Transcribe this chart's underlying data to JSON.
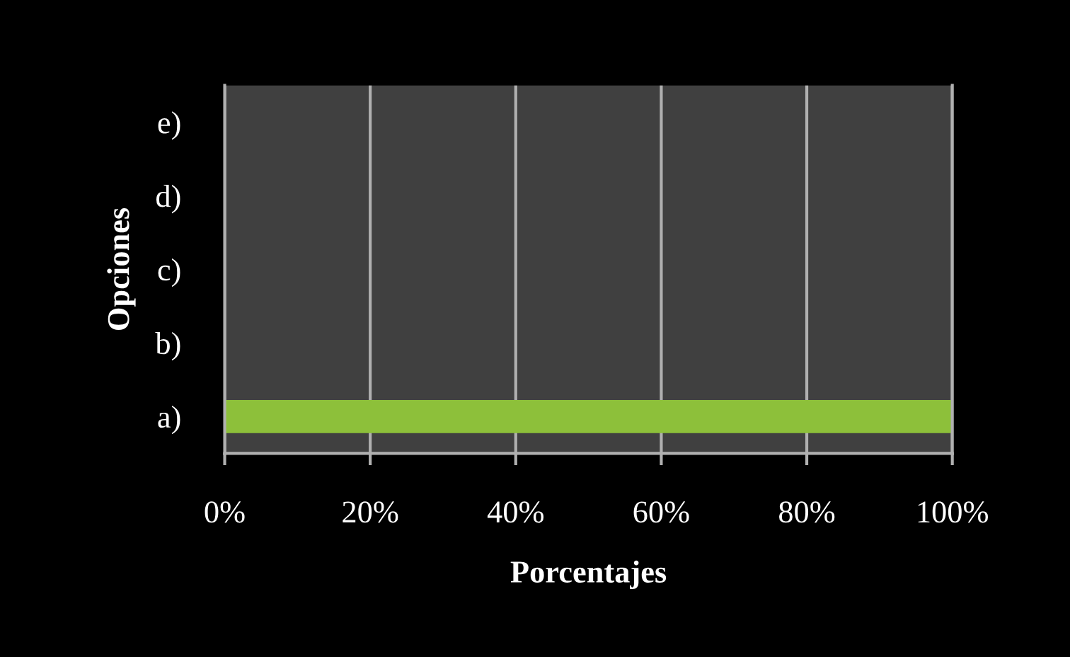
{
  "chart_data": {
    "type": "bar",
    "orientation": "horizontal",
    "xlabel": "Porcentajes",
    "ylabel": "Opciones",
    "categories": [
      "e)",
      "d)",
      "c)",
      "b)",
      "a)"
    ],
    "values": [
      0,
      0,
      0,
      0,
      100
    ],
    "colors": [
      "#d0d0d0",
      "#b02020",
      "#d07a10",
      "#2090b0",
      "#8dc03a"
    ],
    "xlim": [
      0,
      100
    ],
    "xticks": [
      {
        "value": 0,
        "label": "0%"
      },
      {
        "value": 20,
        "label": "20%"
      },
      {
        "value": 40,
        "label": "40%"
      },
      {
        "value": 60,
        "label": "60%"
      },
      {
        "value": 80,
        "label": "80%"
      },
      {
        "value": 100,
        "label": "100%"
      }
    ],
    "grid": "x"
  }
}
